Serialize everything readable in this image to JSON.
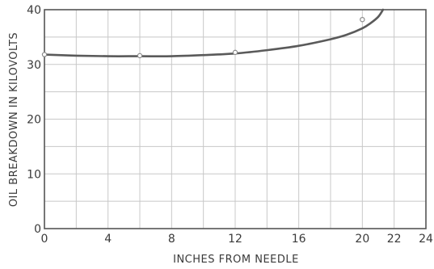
{
  "chart_data": {
    "type": "line",
    "title": "",
    "xlabel": "INCHES FROM NEEDLE",
    "ylabel": "OIL BREAKDOWN IN KILOVOLTS",
    "xlim": [
      0,
      24
    ],
    "ylim": [
      0,
      40
    ],
    "x_ticks": [
      0,
      4,
      8,
      12,
      16,
      20,
      22,
      24
    ],
    "y_ticks": [
      0,
      10,
      20,
      30,
      40
    ],
    "grid": true,
    "minor_grid_step_x": 2,
    "minor_grid_step_y": 5,
    "series": [
      {
        "x": [
          0,
          2,
          4,
          6,
          8,
          10,
          12,
          14,
          16,
          18,
          19,
          20,
          20.5,
          21,
          21.3
        ],
        "y": [
          31.8,
          31.6,
          31.5,
          31.5,
          31.5,
          31.7,
          32.0,
          32.6,
          33.4,
          34.6,
          35.4,
          36.6,
          37.5,
          38.7,
          40
        ]
      }
    ],
    "points": [
      {
        "x": 0,
        "y": 31.8
      },
      {
        "x": 6,
        "y": 31.6
      },
      {
        "x": 12,
        "y": 32.2
      },
      {
        "x": 20,
        "y": 38.2
      }
    ],
    "colors": {
      "line": "#5a5a5a",
      "grid": "#c8c8c8",
      "frame": "#555555",
      "text": "#3a3a3a"
    }
  }
}
